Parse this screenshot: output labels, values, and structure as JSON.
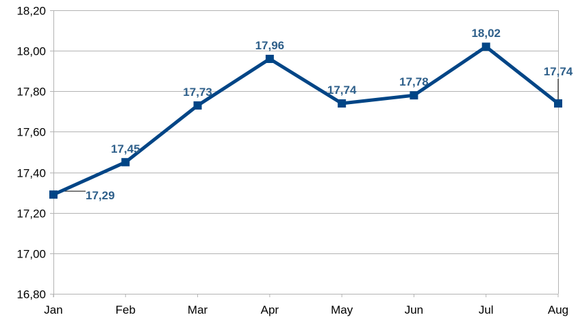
{
  "chart_data": {
    "type": "line",
    "title": "",
    "xlabel": "",
    "ylabel": "",
    "categories": [
      "Jan",
      "Feb",
      "Mar",
      "Apr",
      "May",
      "Jun",
      "Jul",
      "Aug"
    ],
    "series": [
      {
        "values": [
          17.29,
          17.45,
          17.73,
          17.96,
          17.74,
          17.78,
          18.02,
          17.74
        ],
        "data_labels": [
          "17,29",
          "17,45",
          "17,73",
          "17,96",
          "17,74",
          "17,78",
          "18,02",
          "17,74"
        ],
        "color": "#004586",
        "label_color": "#2e5f8a",
        "marker": "square"
      }
    ],
    "ylim": [
      16.8,
      18.2
    ],
    "y_ticks": [
      16.8,
      17.0,
      17.2,
      17.4,
      17.6,
      17.8,
      18.0,
      18.2
    ],
    "y_tick_labels": [
      "16,80",
      "17,00",
      "17,20",
      "17,40",
      "17,60",
      "17,80",
      "18,00",
      "18,20"
    ],
    "grid": true,
    "legend": "none"
  }
}
